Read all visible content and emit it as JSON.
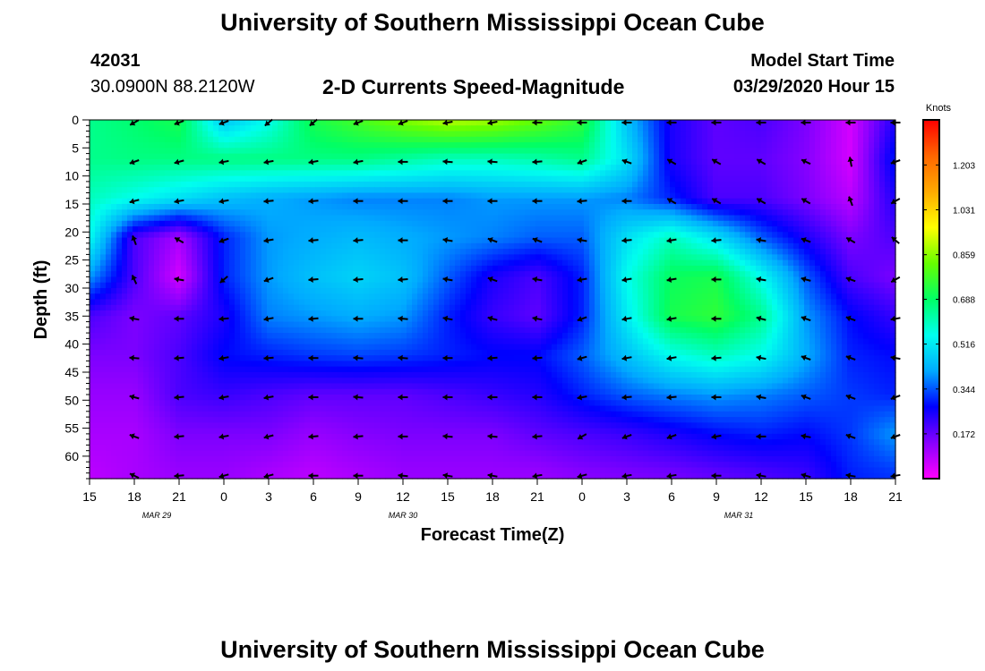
{
  "header": {
    "title": "University of Southern Mississippi Ocean Cube",
    "station_id": "42031",
    "coords": "30.0900N 88.2120W",
    "subtitle": "2-D Currents Speed-Magnitude",
    "model_start_label": "Model Start Time",
    "model_start_value": "03/29/2020 Hour 15"
  },
  "footer": {
    "title": "University of Southern Mississippi Ocean Cube"
  },
  "colorbar": {
    "unit": "Knots",
    "ticks": [
      "1.203",
      "1.031",
      "0.859",
      "0.688",
      "0.516",
      "0.344",
      "0.172"
    ],
    "tick_values": [
      1.203,
      1.031,
      0.859,
      0.688,
      0.516,
      0.344,
      0.172
    ],
    "range": [
      0.0,
      1.376
    ],
    "colors": [
      "#ff00ff",
      "#8800ff",
      "#0000ff",
      "#00aaff",
      "#00ffee",
      "#00ff66",
      "#66ff00",
      "#ffff00",
      "#ffaa00",
      "#ff6600",
      "#ff0000"
    ]
  },
  "chart_data": {
    "type": "heatmap",
    "title": "2-D Currents Speed-Magnitude",
    "xlabel": "Forecast Time(Z)",
    "ylabel": "Depth (ft)",
    "x_tick_labels": [
      "15",
      "18",
      "21",
      "0",
      "3",
      "6",
      "9",
      "12",
      "15",
      "18",
      "21",
      "0",
      "3",
      "6",
      "9",
      "12",
      "15",
      "18",
      "21"
    ],
    "date_labels": [
      {
        "text": "MAR 29",
        "at_tick": 1.5
      },
      {
        "text": "MAR 30",
        "at_tick": 7
      },
      {
        "text": "MAR 31",
        "at_tick": 14.5
      }
    ],
    "y_tick_labels": [
      "0",
      "5",
      "10",
      "15",
      "20",
      "25",
      "30",
      "35",
      "40",
      "45",
      "50",
      "55",
      "60"
    ],
    "ylim": [
      0,
      64
    ],
    "x_hours": [
      0,
      3,
      6,
      9,
      12,
      15,
      18,
      21,
      24,
      27,
      30,
      33,
      36,
      39,
      42,
      45,
      48,
      51,
      54
    ],
    "depths": [
      0,
      7,
      14,
      21,
      28,
      35,
      42,
      49,
      56,
      63
    ],
    "speed_knots": [
      [
        0.65,
        0.68,
        0.72,
        0.45,
        0.55,
        0.72,
        0.78,
        0.85,
        0.9,
        0.88,
        0.82,
        0.75,
        0.45,
        0.25,
        0.18,
        0.2,
        0.15,
        0.05,
        0.25
      ],
      [
        0.65,
        0.66,
        0.66,
        0.66,
        0.66,
        0.66,
        0.66,
        0.63,
        0.6,
        0.6,
        0.62,
        0.65,
        0.5,
        0.25,
        0.18,
        0.18,
        0.14,
        0.05,
        0.3
      ],
      [
        0.6,
        0.55,
        0.5,
        0.45,
        0.42,
        0.4,
        0.38,
        0.38,
        0.38,
        0.4,
        0.4,
        0.4,
        0.38,
        0.3,
        0.2,
        0.2,
        0.15,
        0.08,
        0.25
      ],
      [
        0.55,
        0.2,
        0.1,
        0.3,
        0.4,
        0.42,
        0.44,
        0.42,
        0.4,
        0.38,
        0.35,
        0.35,
        0.5,
        0.6,
        0.5,
        0.35,
        0.25,
        0.15,
        0.2
      ],
      [
        0.4,
        0.2,
        0.05,
        0.3,
        0.4,
        0.45,
        0.48,
        0.45,
        0.35,
        0.25,
        0.2,
        0.3,
        0.55,
        0.7,
        0.72,
        0.55,
        0.35,
        0.2,
        0.15
      ],
      [
        0.2,
        0.15,
        0.18,
        0.25,
        0.38,
        0.4,
        0.42,
        0.4,
        0.3,
        0.22,
        0.18,
        0.3,
        0.52,
        0.72,
        0.75,
        0.65,
        0.4,
        0.28,
        0.22
      ],
      [
        0.15,
        0.15,
        0.2,
        0.28,
        0.3,
        0.32,
        0.33,
        0.32,
        0.3,
        0.28,
        0.28,
        0.35,
        0.45,
        0.55,
        0.6,
        0.55,
        0.42,
        0.3,
        0.28
      ],
      [
        0.12,
        0.12,
        0.2,
        0.22,
        0.2,
        0.18,
        0.18,
        0.18,
        0.2,
        0.22,
        0.24,
        0.3,
        0.35,
        0.38,
        0.4,
        0.38,
        0.35,
        0.32,
        0.3
      ],
      [
        0.1,
        0.1,
        0.15,
        0.15,
        0.15,
        0.12,
        0.14,
        0.15,
        0.15,
        0.15,
        0.18,
        0.2,
        0.22,
        0.25,
        0.28,
        0.3,
        0.28,
        0.32,
        0.4
      ],
      [
        0.08,
        0.1,
        0.12,
        0.12,
        0.1,
        0.08,
        0.1,
        0.12,
        0.12,
        0.12,
        0.12,
        0.14,
        0.15,
        0.16,
        0.18,
        0.2,
        0.22,
        0.3,
        0.32
      ]
    ],
    "vector_x_index": [
      1,
      2,
      3,
      4,
      5,
      6,
      7,
      8,
      9,
      10,
      11,
      12,
      13,
      14,
      15,
      16,
      17,
      18
    ],
    "vector_depths": [
      0,
      7,
      14,
      21,
      28,
      35,
      42,
      49,
      56,
      63
    ],
    "vector_direction_deg": [
      [
        210,
        200,
        200,
        220,
        220,
        200,
        200,
        190,
        190,
        180,
        180,
        180,
        180,
        180,
        180,
        180,
        180,
        180
      ],
      [
        200,
        195,
        190,
        190,
        190,
        190,
        180,
        175,
        175,
        185,
        200,
        160,
        150,
        150,
        150,
        155,
        100,
        200
      ],
      [
        195,
        190,
        190,
        185,
        185,
        180,
        180,
        180,
        180,
        180,
        185,
        180,
        150,
        150,
        150,
        150,
        110,
        210
      ],
      [
        110,
        150,
        200,
        190,
        185,
        185,
        180,
        170,
        160,
        160,
        170,
        185,
        190,
        185,
        170,
        160,
        150,
        140
      ],
      [
        115,
        170,
        220,
        200,
        185,
        185,
        185,
        170,
        160,
        170,
        190,
        190,
        190,
        180,
        170,
        165,
        160,
        210
      ],
      [
        170,
        180,
        185,
        190,
        185,
        180,
        175,
        170,
        165,
        170,
        200,
        190,
        190,
        180,
        165,
        160,
        160,
        190
      ],
      [
        175,
        185,
        190,
        185,
        180,
        175,
        175,
        180,
        185,
        185,
        195,
        190,
        190,
        185,
        170,
        160,
        160,
        170
      ],
      [
        165,
        185,
        190,
        190,
        180,
        175,
        180,
        180,
        180,
        180,
        190,
        185,
        185,
        180,
        170,
        160,
        160,
        200
      ],
      [
        160,
        185,
        190,
        195,
        185,
        185,
        180,
        175,
        175,
        185,
        210,
        200,
        200,
        190,
        180,
        170,
        160,
        200
      ],
      [
        155,
        185,
        195,
        195,
        180,
        180,
        175,
        170,
        170,
        190,
        195,
        190,
        190,
        180,
        170,
        165,
        170,
        190
      ]
    ],
    "speed_units": "Knots"
  }
}
